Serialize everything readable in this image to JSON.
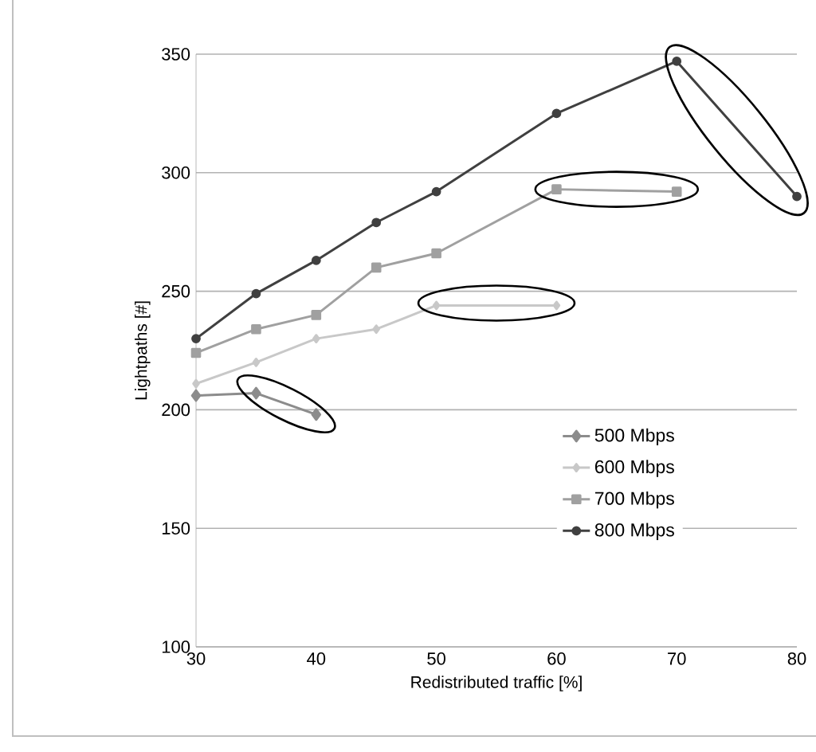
{
  "chart_data": {
    "type": "line",
    "xlabel": "Redistributed traffic [%]",
    "ylabel": "Lightpaths [#]",
    "xlim": [
      30,
      80
    ],
    "xticks": [
      30,
      40,
      50,
      60,
      70,
      80
    ],
    "ylim": [
      100,
      350
    ],
    "yticks": [
      100,
      150,
      200,
      250,
      300,
      350
    ],
    "grid": "y",
    "legend": "right",
    "line_style": "solid",
    "series": [
      {
        "name": "500 Mbps",
        "color": "#8c8c8c",
        "marker": "diamond",
        "x": [
          30,
          35,
          40
        ],
        "values": [
          206,
          207,
          198
        ]
      },
      {
        "name": "600 Mbps",
        "color": "#c8c8c8",
        "marker": "diamond",
        "x": [
          30,
          35,
          40,
          45,
          50,
          60
        ],
        "values": [
          211,
          220,
          230,
          234,
          244,
          244
        ]
      },
      {
        "name": "700 Mbps",
        "color": "#a0a0a0",
        "marker": "square",
        "x": [
          30,
          35,
          40,
          45,
          50,
          60,
          70
        ],
        "values": [
          224,
          234,
          240,
          260,
          266,
          293,
          292
        ]
      },
      {
        "name": "800 Mbps",
        "color": "#404040",
        "marker": "circle",
        "x": [
          30,
          35,
          40,
          45,
          50,
          60,
          70,
          80
        ],
        "values": [
          230,
          249,
          263,
          279,
          292,
          325,
          347,
          290
        ]
      }
    ]
  }
}
